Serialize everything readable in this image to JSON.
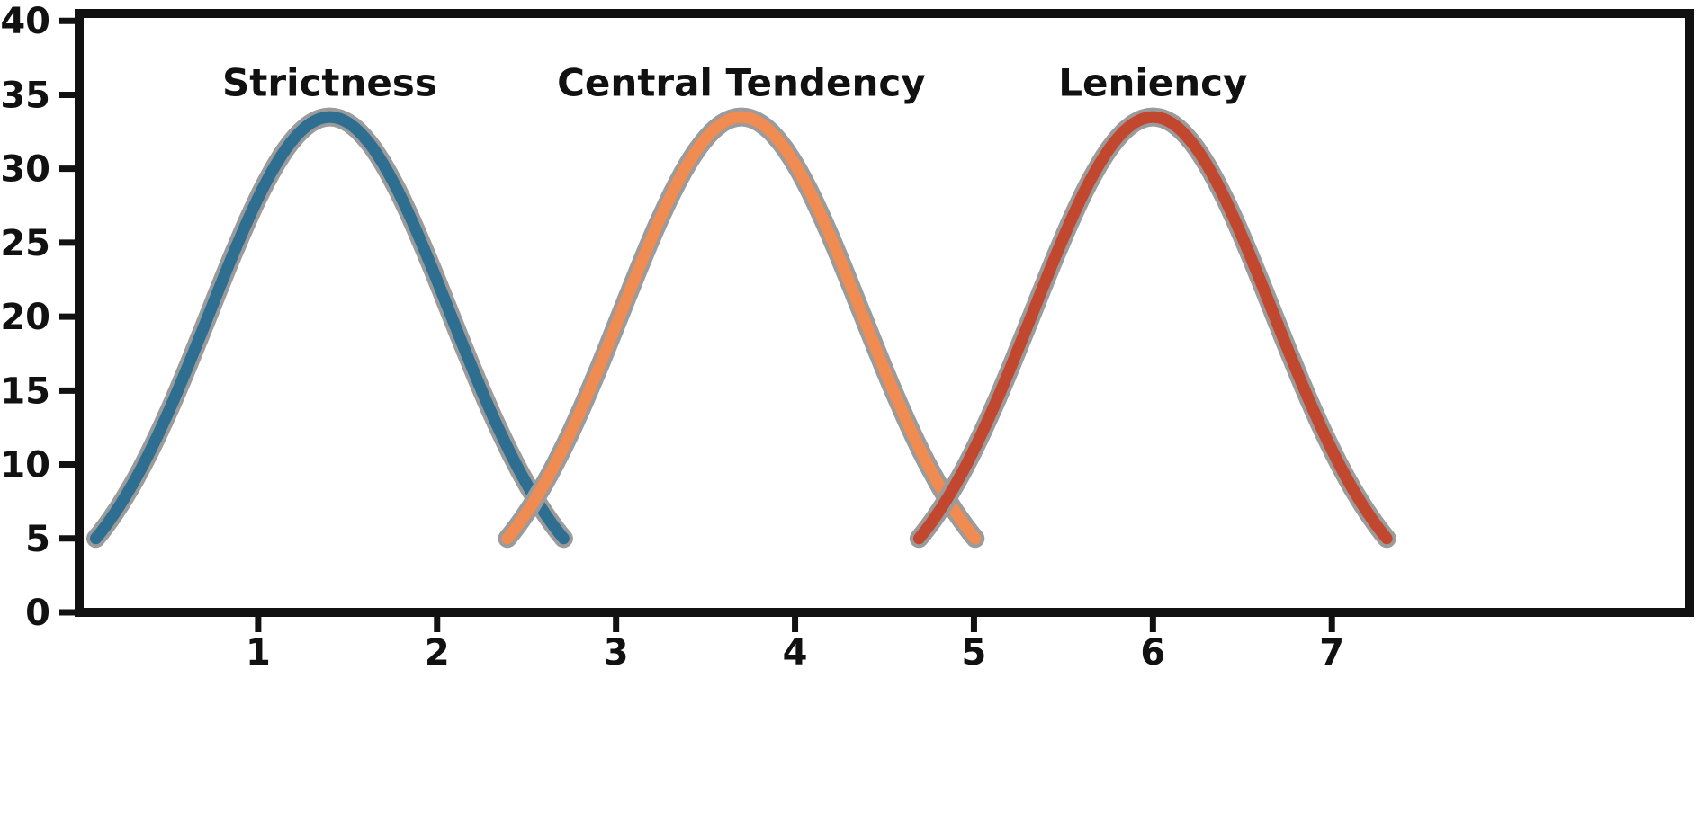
{
  "page": {
    "background": "#ffffff"
  },
  "chart_data": {
    "type": "line",
    "title": "",
    "subtitle": "",
    "xlabel": "",
    "ylabel": "",
    "grid": false,
    "legend_position": "none",
    "xlim": [
      0,
      9
    ],
    "ylim": [
      0,
      40.5
    ],
    "x_tick_values": [
      1,
      2,
      3,
      4,
      5,
      6,
      7
    ],
    "x_tick_labels": [
      "1",
      "2",
      "3",
      "4",
      "5",
      "6",
      "7"
    ],
    "y_tick_values": [
      0,
      5,
      10,
      15,
      20,
      25,
      30,
      35,
      40
    ],
    "y_tick_labels": [
      "0",
      "5",
      "10",
      "15",
      "20",
      "25",
      "30",
      "35",
      "40"
    ],
    "frame_color": "#111111",
    "tick_color": "#111111",
    "tick_label_color": "#111111",
    "annotation_color": "#111111",
    "halo_color": "#9b9b9b",
    "series": [
      {
        "name": "Strictness",
        "shape": "gaussian",
        "color": "#2e6f91",
        "mean": 1.4,
        "sigma": 0.67,
        "peak": 33.5,
        "y_cutoff": 5,
        "label_y": 35.8
      },
      {
        "name": "Central Tendency",
        "shape": "gaussian",
        "color": "#f08b51",
        "mean": 3.7,
        "sigma": 0.67,
        "peak": 33.5,
        "y_cutoff": 5,
        "label_y": 35.8
      },
      {
        "name": "Leniency",
        "shape": "gaussian",
        "color": "#c2472f",
        "mean": 6.0,
        "sigma": 0.67,
        "peak": 33.5,
        "y_cutoff": 5,
        "label_y": 35.8
      }
    ]
  }
}
